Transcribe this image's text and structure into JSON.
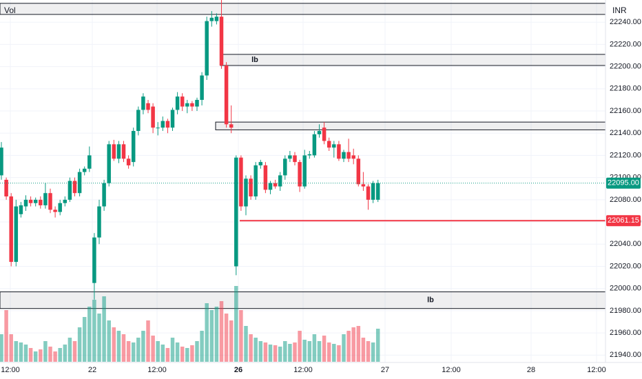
{
  "chart_data": {
    "type": "candlestick",
    "currency": "INR",
    "volume_label": "Vol",
    "up_color": "#089981",
    "down_color": "#f23645",
    "ylim": [
      21934,
      22260
    ],
    "yticks": [
      {
        "value": 21940,
        "label": "21940.00"
      },
      {
        "value": 21960,
        "label": "21960.00"
      },
      {
        "value": 21980,
        "label": "21980.00"
      },
      {
        "value": 22000,
        "label": "22000.00"
      },
      {
        "value": 22020,
        "label": "22020.00"
      },
      {
        "value": 22040,
        "label": "22040.00"
      },
      {
        "value": 22060,
        "label": "22060.00"
      },
      {
        "value": 22080,
        "label": "22080.00"
      },
      {
        "value": 22100,
        "label": "22100.00"
      },
      {
        "value": 22120,
        "label": "22120.00"
      },
      {
        "value": 22140,
        "label": "22140.00"
      },
      {
        "value": 22160,
        "label": "22160.00"
      },
      {
        "value": 22180,
        "label": "22180.00"
      },
      {
        "value": 22200,
        "label": "22200.00"
      },
      {
        "value": 22220,
        "label": "22220.00"
      },
      {
        "value": 22240,
        "label": "22240.00"
      }
    ],
    "xticks": [
      "12:00",
      "22",
      "12:00",
      "26",
      "12:00",
      "27",
      "12:00",
      "28",
      "12:00"
    ],
    "grid": true,
    "candles": [
      [
        22102,
        22132,
        22098,
        22127
      ],
      [
        22098,
        22100,
        22080,
        22083
      ],
      [
        22083,
        22086,
        22020,
        22024
      ],
      [
        22024,
        22080,
        22020,
        22074
      ],
      [
        22067,
        22078,
        22064,
        22075
      ],
      [
        22074,
        22084,
        22070,
        22080
      ],
      [
        22080,
        22083,
        22074,
        22077
      ],
      [
        22077,
        22082,
        22074,
        22080
      ],
      [
        22080,
        22083,
        22072,
        22075
      ],
      [
        22075,
        22095,
        22072,
        22086
      ],
      [
        22086,
        22090,
        22068,
        22071
      ],
      [
        22071,
        22074,
        22064,
        22069
      ],
      [
        22069,
        22080,
        22066,
        22077
      ],
      [
        22077,
        22083,
        22074,
        22080
      ],
      [
        22080,
        22100,
        22078,
        22097
      ],
      [
        22097,
        22100,
        22083,
        22086
      ],
      [
        22086,
        22108,
        22083,
        22105
      ],
      [
        22105,
        22110,
        22102,
        22108
      ],
      [
        22108,
        22128,
        22105,
        22120
      ],
      [
        22005,
        22050,
        21990,
        22046
      ],
      [
        22046,
        22080,
        22040,
        22074
      ],
      [
        22074,
        22098,
        22070,
        22095
      ],
      [
        22095,
        22133,
        22092,
        22130
      ],
      [
        22130,
        22134,
        22115,
        22117
      ],
      [
        22117,
        22133,
        22113,
        22130
      ],
      [
        22130,
        22133,
        22114,
        22117
      ],
      [
        22117,
        22120,
        22108,
        22111
      ],
      [
        22114,
        22145,
        22110,
        22142
      ],
      [
        22142,
        22164,
        22138,
        22161
      ],
      [
        22161,
        22176,
        22157,
        22173
      ],
      [
        22167,
        22170,
        22158,
        22161
      ],
      [
        22164,
        22167,
        22140,
        22145
      ],
      [
        22145,
        22150,
        22138,
        22145
      ],
      [
        22145,
        22155,
        22142,
        22151
      ],
      [
        22151,
        22153,
        22140,
        22145
      ],
      [
        22145,
        22163,
        22142,
        22161
      ],
      [
        22161,
        22177,
        22157,
        22173
      ],
      [
        22173,
        22176,
        22160,
        22164
      ],
      [
        22164,
        22170,
        22158,
        22167
      ],
      [
        22167,
        22169,
        22160,
        22164
      ],
      [
        22164,
        22172,
        22160,
        22170
      ],
      [
        22170,
        22195,
        22165,
        22192
      ],
      [
        22192,
        22245,
        22188,
        22241
      ],
      [
        22241,
        22250,
        22236,
        22244
      ],
      [
        22241,
        22248,
        22238,
        22245
      ],
      [
        22245,
        22262,
        22198,
        22201
      ],
      [
        22201,
        22204,
        22145,
        22148
      ],
      [
        22148,
        22165,
        22140,
        22145
      ],
      [
        22020,
        22120,
        22012,
        22118
      ],
      [
        22118,
        22120,
        22070,
        22074
      ],
      [
        22074,
        22102,
        22066,
        22099
      ],
      [
        22099,
        22102,
        22080,
        22083
      ],
      [
        22083,
        22114,
        22080,
        22111
      ],
      [
        22111,
        22116,
        22108,
        22114
      ],
      [
        22111,
        22114,
        22086,
        22089
      ],
      [
        22089,
        22097,
        22085,
        22095
      ],
      [
        22095,
        22098,
        22090,
        22092
      ],
      [
        22092,
        22105,
        22088,
        22102
      ],
      [
        22102,
        22120,
        22098,
        22117
      ],
      [
        22117,
        22124,
        22114,
        22120
      ],
      [
        22120,
        22123,
        22111,
        22114
      ],
      [
        22114,
        22116,
        22087,
        22092
      ],
      [
        22092,
        22125,
        22090,
        22120
      ],
      [
        22120,
        22124,
        22117,
        22121
      ],
      [
        22120,
        22142,
        22118,
        22139
      ],
      [
        22139,
        22148,
        22136,
        22142
      ],
      [
        22145,
        22150,
        22130,
        22133
      ],
      [
        22133,
        22136,
        22124,
        22127
      ],
      [
        22127,
        22133,
        22118,
        22130
      ],
      [
        22130,
        22133,
        22115,
        22117
      ],
      [
        22117,
        22125,
        22114,
        22123
      ],
      [
        22123,
        22135,
        22114,
        22117
      ],
      [
        22120,
        22126,
        22112,
        22117
      ],
      [
        22117,
        22120,
        22092,
        22094
      ],
      [
        22094,
        22105,
        22088,
        22092
      ],
      [
        22092,
        22094,
        22071,
        22080
      ],
      [
        22080,
        22097,
        22077,
        22095
      ],
      [
        22080,
        22098,
        22078,
        22095
      ]
    ],
    "volume": [
      40,
      75,
      40,
      30,
      28,
      25,
      20,
      15,
      18,
      30,
      22,
      15,
      20,
      25,
      35,
      30,
      50,
      65,
      80,
      90,
      70,
      95,
      60,
      50,
      45,
      40,
      30,
      28,
      35,
      45,
      60,
      38,
      30,
      25,
      20,
      35,
      28,
      22,
      20,
      24,
      30,
      45,
      85,
      75,
      80,
      88,
      70,
      60,
      110,
      75,
      52,
      40,
      35,
      30,
      28,
      25,
      24,
      22,
      30,
      26,
      28,
      45,
      32,
      30,
      40,
      30,
      38,
      28,
      26,
      24,
      40,
      45,
      50,
      52,
      35,
      30,
      28,
      48
    ],
    "zones": [
      {
        "top": 22257,
        "bottom": 22247
      },
      {
        "top": 22211,
        "bottom": 22201,
        "label": "lb"
      },
      {
        "top": 22150,
        "bottom": 22143
      },
      {
        "top": 21997,
        "bottom": 21982,
        "label": "lb"
      }
    ],
    "last_price": {
      "value": 22095,
      "label": "22095.00"
    },
    "level": {
      "value": 22061.15,
      "label": "22061.15",
      "color": "#f23645"
    }
  }
}
